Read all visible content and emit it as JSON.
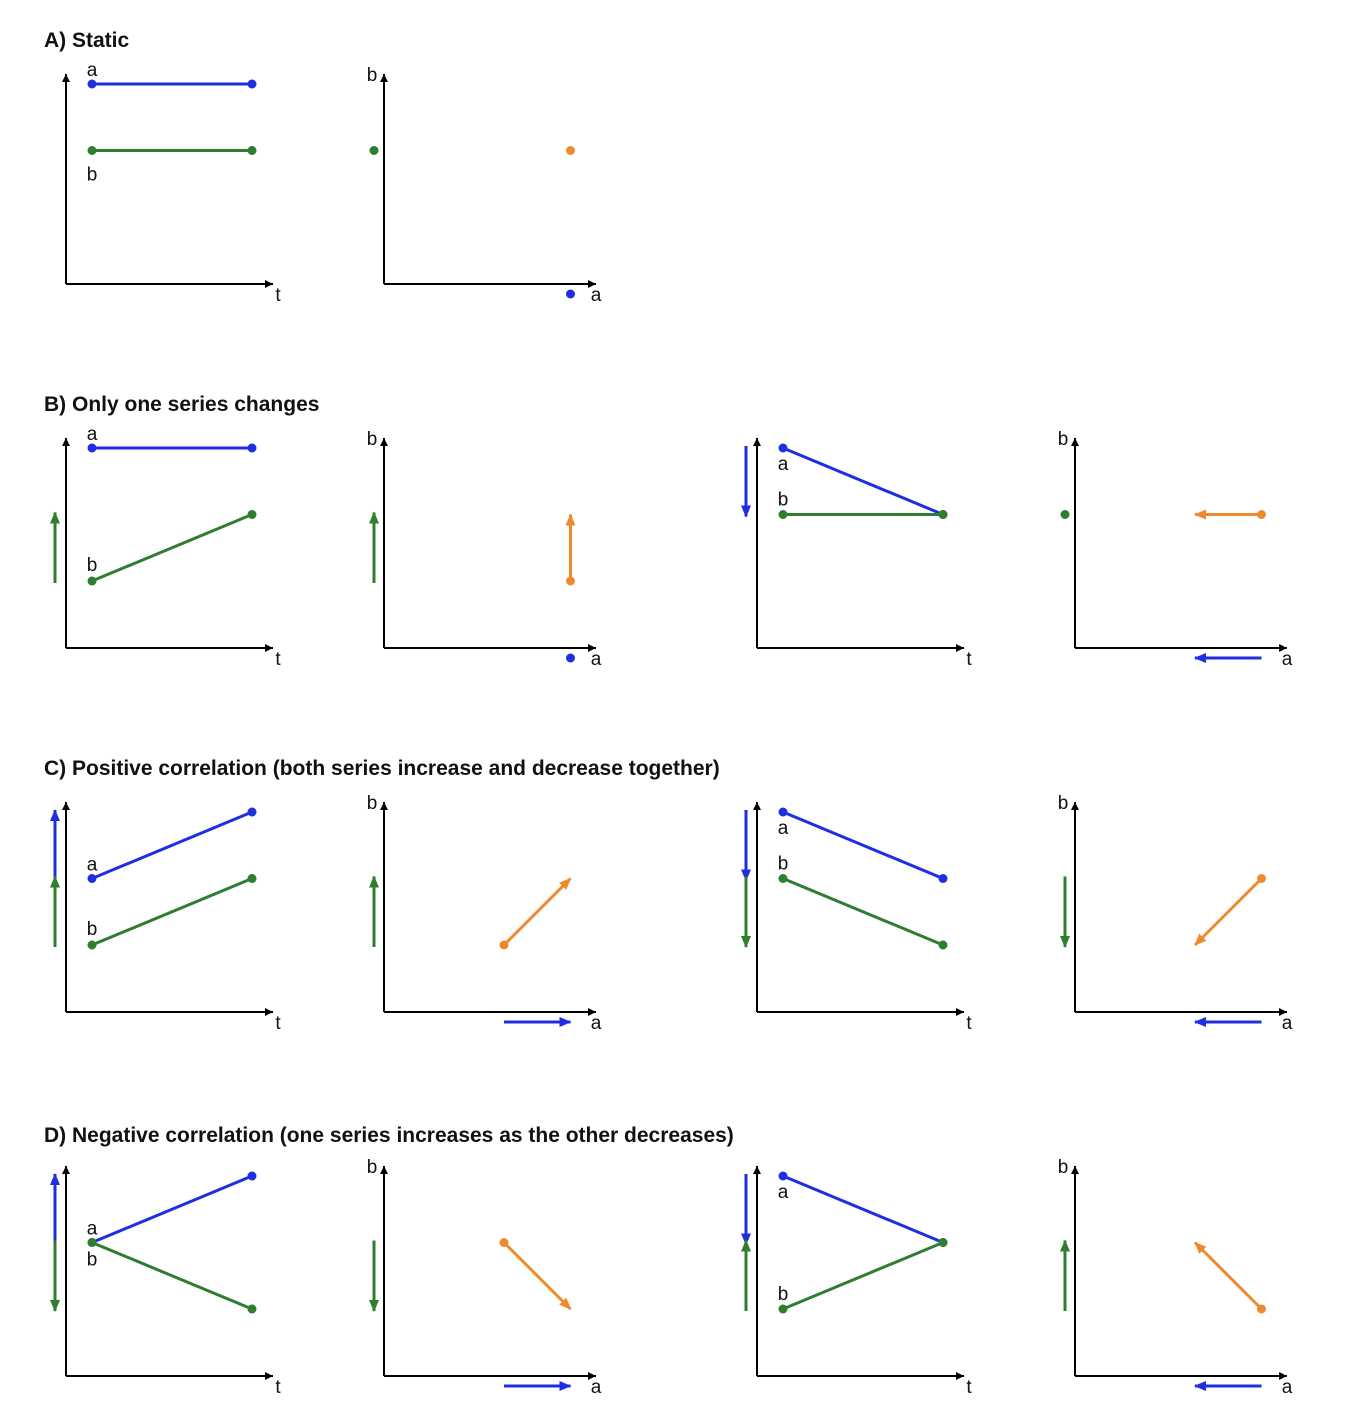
{
  "colors": {
    "a": "#1f2fe0",
    "b": "#2f7d2f",
    "scatter": "#ee8a2e",
    "axis": "#000000",
    "text": "#111111"
  },
  "axis_labels": {
    "time": "t",
    "a": "a",
    "b": "b"
  },
  "series_labels": {
    "a": "a",
    "b": "b"
  },
  "sections": [
    {
      "id": "A",
      "title": "A) Static",
      "cases": [
        {
          "a": [
            1,
            1
          ],
          "b": [
            0,
            0
          ]
        }
      ]
    },
    {
      "id": "B",
      "title": "B) Only one series changes",
      "cases": [
        {
          "a": [
            1,
            1
          ],
          "b": [
            -1,
            0
          ]
        },
        {
          "a": [
            1,
            0
          ],
          "b": [
            0,
            0
          ]
        }
      ]
    },
    {
      "id": "C",
      "title": "C) Positive correlation (both series increase and decrease together)",
      "cases": [
        {
          "a": [
            0,
            1
          ],
          "b": [
            -1,
            0
          ]
        },
        {
          "a": [
            1,
            0
          ],
          "b": [
            0,
            -1
          ]
        }
      ]
    },
    {
      "id": "D",
      "title": "D) Negative correlation (one series increases as the other decreases)",
      "cases": [
        {
          "a": [
            0,
            1
          ],
          "b": [
            0,
            -1
          ]
        },
        {
          "a": [
            1,
            0
          ],
          "b": [
            -1,
            0
          ]
        }
      ]
    }
  ]
}
